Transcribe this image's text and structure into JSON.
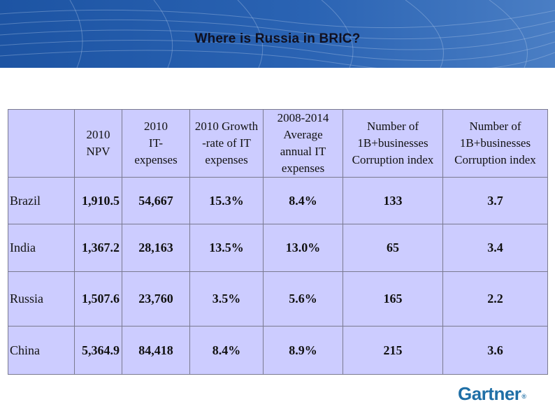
{
  "slide": {
    "title": "Where is Russia in BRIC?"
  },
  "table": {
    "headers": [
      {
        "lines": [
          ""
        ]
      },
      {
        "lines": [
          "2010",
          "NPV"
        ]
      },
      {
        "lines": [
          "2010",
          "IT-",
          "expenses"
        ]
      },
      {
        "lines": [
          "2010 Growth",
          "-rate of IT",
          "expenses"
        ]
      },
      {
        "lines": [
          "2008-2014",
          "Average",
          "annual IT",
          "expenses"
        ]
      },
      {
        "lines": [
          "Number of",
          "1B+businesses",
          "Corruption  index"
        ]
      },
      {
        "lines": [
          "Number of",
          "1B+businesses",
          "Corruption  index"
        ]
      }
    ],
    "rows": [
      {
        "country": "Brazil",
        "npv": "1,910.5",
        "it_expenses": "54,667",
        "growth": "15.3%",
        "avg_annual": "8.4%",
        "businesses": "133",
        "corruption": "3.7"
      },
      {
        "country": "India",
        "npv": "1,367.2",
        "it_expenses": "28,163",
        "growth": "13.5%",
        "avg_annual": "13.0%",
        "businesses": "65",
        "corruption": "3.4"
      },
      {
        "country": "Russia",
        "npv": "1,507.6",
        "it_expenses": "23,760",
        "growth": "3.5%",
        "avg_annual": "5.6%",
        "businesses": "165",
        "corruption": "2.2"
      },
      {
        "country": "China",
        "npv": "5,364.9",
        "it_expenses": "84,418",
        "growth": "8.4%",
        "avg_annual": "8.9%",
        "businesses": "215",
        "corruption": "3.6"
      }
    ]
  },
  "logo": {
    "text": "Gartner",
    "mark": "®"
  },
  "colors": {
    "banner": "#1f5aa8",
    "table_fill": "#ccccff",
    "logo": "#1f6fa6"
  }
}
